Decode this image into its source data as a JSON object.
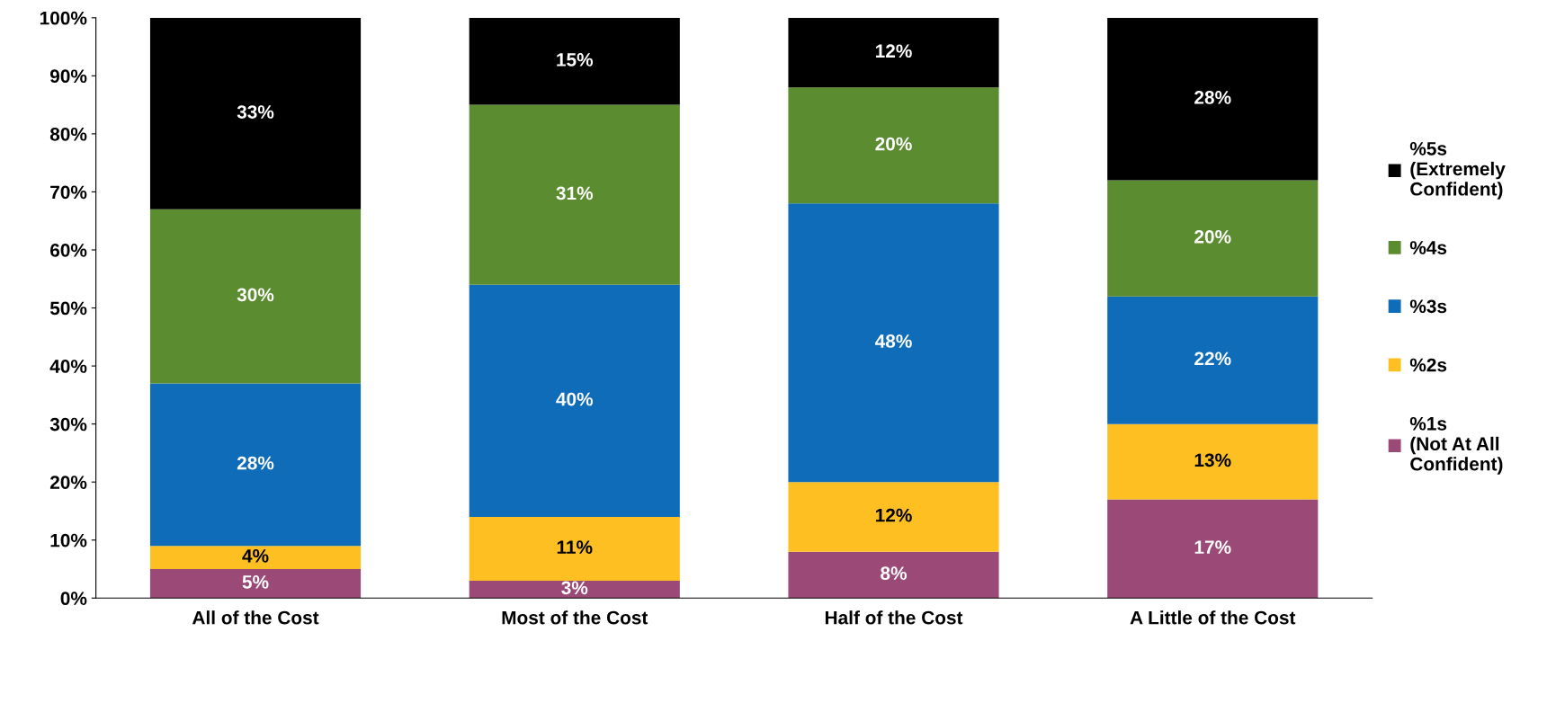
{
  "chart_data": {
    "type": "bar",
    "stacked": true,
    "categories": [
      "All of the Cost",
      "Most of the Cost",
      "Half of the Cost",
      "A Little of the Cost"
    ],
    "series": [
      {
        "name": "%1s\n(Not At All\nConfident)",
        "color": "#9b4a78",
        "values": [
          5,
          3,
          8,
          17
        ],
        "value_labels": [
          "5%",
          "3%",
          "8%",
          "17%"
        ]
      },
      {
        "name": "%2s",
        "color": "#fdbf22",
        "values": [
          4,
          11,
          12,
          13
        ],
        "value_labels": [
          "4%",
          "11%",
          "12%",
          "13%"
        ]
      },
      {
        "name": "%3s",
        "color": "#0f6cb9",
        "values": [
          28,
          40,
          48,
          22
        ],
        "value_labels": [
          "28%",
          "40%",
          "48%",
          "22%"
        ]
      },
      {
        "name": "%4s",
        "color": "#5b8c2f",
        "values": [
          30,
          31,
          20,
          20
        ],
        "value_labels": [
          "30%",
          "31%",
          "20%",
          "20%"
        ]
      },
      {
        "name": "%5s\n(Extremely\nConfident)",
        "color": "#000000",
        "values": [
          33,
          15,
          12,
          28
        ],
        "value_labels": [
          "33%",
          "15%",
          "12%",
          "28%"
        ]
      }
    ],
    "ylim": [
      0,
      100
    ],
    "yticks": [
      {
        "value": 0,
        "label": "0%"
      },
      {
        "value": 10,
        "label": "10%"
      },
      {
        "value": 20,
        "label": "20%"
      },
      {
        "value": 30,
        "label": "30%"
      },
      {
        "value": 40,
        "label": "40%"
      },
      {
        "value": 50,
        "label": "50%"
      },
      {
        "value": 60,
        "label": "60%"
      },
      {
        "value": 70,
        "label": "70%"
      },
      {
        "value": 80,
        "label": "80%"
      },
      {
        "value": 90,
        "label": "90%"
      },
      {
        "value": 100,
        "label": "100%"
      }
    ],
    "grid": false,
    "legend": "right"
  }
}
